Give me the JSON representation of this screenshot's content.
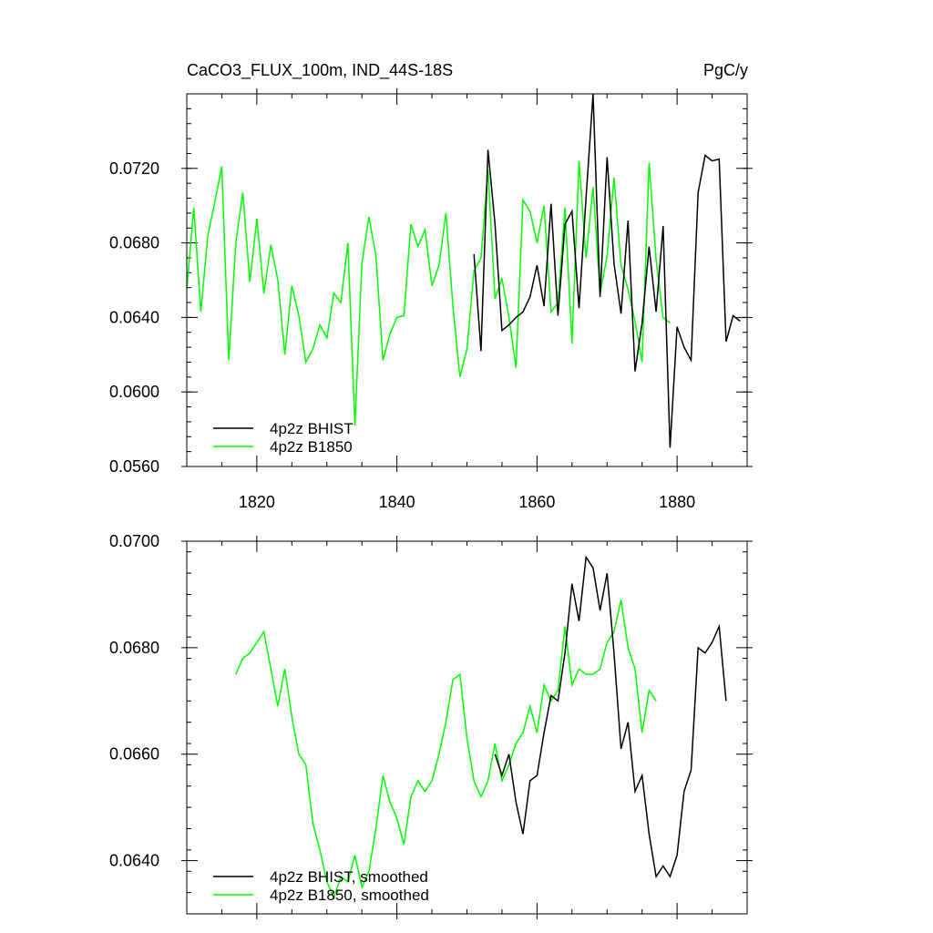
{
  "chart_data": [
    {
      "type": "line",
      "title_left": "CaCO3_FLUX_100m, IND_44S-18S",
      "title_right": "PgC/y",
      "xlabel": "",
      "ylabel": "",
      "xlim": [
        1810,
        1890
      ],
      "ylim": [
        0.056,
        0.076
      ],
      "xticks": [
        1820,
        1840,
        1860,
        1880
      ],
      "xtick_labels": [
        "1820",
        "1840",
        "1860",
        "1880"
      ],
      "yticks": [
        0.056,
        0.06,
        0.064,
        0.068,
        0.072
      ],
      "ytick_labels": [
        "0.0560",
        "0.0600",
        "0.0640",
        "0.0680",
        "0.0720"
      ],
      "legend_position": "bottom-left",
      "series": [
        {
          "name": "4p2z BHIST",
          "color": "#000000",
          "x": [
            1851,
            1852,
            1853,
            1854,
            1855,
            1856,
            1857,
            1858,
            1859,
            1860,
            1861,
            1862,
            1863,
            1864,
            1865,
            1866,
            1867,
            1868,
            1869,
            1870,
            1871,
            1872,
            1873,
            1874,
            1875,
            1876,
            1877,
            1878,
            1879,
            1880,
            1881,
            1882,
            1883,
            1884,
            1885,
            1886,
            1887,
            1888,
            1889
          ],
          "values": [
            0.0674,
            0.0622,
            0.073,
            0.069,
            0.0633,
            0.0636,
            0.064,
            0.0643,
            0.0651,
            0.0668,
            0.0646,
            0.0701,
            0.0641,
            0.069,
            0.0697,
            0.0645,
            0.0704,
            0.076,
            0.0651,
            0.0726,
            0.0669,
            0.0642,
            0.0692,
            0.0611,
            0.0637,
            0.0678,
            0.0643,
            0.0689,
            0.057,
            0.0635,
            0.0624,
            0.0617,
            0.0707,
            0.0727,
            0.0724,
            0.0725,
            0.0627,
            0.0641,
            0.0638
          ]
        },
        {
          "name": "4p2z B1850",
          "color": "#00ff00",
          "x": [
            1810,
            1811,
            1812,
            1813,
            1814,
            1815,
            1816,
            1817,
            1818,
            1819,
            1820,
            1821,
            1822,
            1823,
            1824,
            1825,
            1826,
            1827,
            1828,
            1829,
            1830,
            1831,
            1832,
            1833,
            1834,
            1835,
            1836,
            1837,
            1838,
            1839,
            1840,
            1841,
            1842,
            1843,
            1844,
            1845,
            1846,
            1847,
            1848,
            1849,
            1850,
            1851,
            1852,
            1853,
            1854,
            1855,
            1856,
            1857,
            1858,
            1859,
            1860,
            1861,
            1862,
            1863,
            1864,
            1865,
            1866,
            1867,
            1868,
            1869,
            1870,
            1871,
            1872,
            1873,
            1874,
            1875,
            1876,
            1877,
            1878,
            1879
          ],
          "values": [
            0.0655,
            0.0699,
            0.0643,
            0.0684,
            0.0702,
            0.0721,
            0.0617,
            0.068,
            0.0707,
            0.0659,
            0.0693,
            0.0653,
            0.0679,
            0.066,
            0.062,
            0.0657,
            0.0641,
            0.0616,
            0.0623,
            0.0636,
            0.0629,
            0.0653,
            0.0648,
            0.068,
            0.0582,
            0.0669,
            0.0694,
            0.0673,
            0.0617,
            0.0631,
            0.064,
            0.0641,
            0.069,
            0.0678,
            0.0687,
            0.0657,
            0.0668,
            0.0696,
            0.0646,
            0.0608,
            0.0623,
            0.0665,
            0.0672,
            0.0719,
            0.065,
            0.0661,
            0.064,
            0.0613,
            0.0703,
            0.0697,
            0.068,
            0.07,
            0.0643,
            0.0648,
            0.0699,
            0.0626,
            0.0724,
            0.0672,
            0.071,
            0.0653,
            0.0673,
            0.0715,
            0.0668,
            0.0655,
            0.0638,
            0.0616,
            0.0723,
            0.0671,
            0.064,
            0.0637
          ]
        }
      ]
    },
    {
      "type": "line",
      "title": "",
      "xlabel": "",
      "ylabel": "",
      "xlim": [
        1810,
        1890
      ],
      "ylim": [
        0.063,
        0.07
      ],
      "xticks": [
        1820,
        1840,
        1860,
        1880
      ],
      "yticks": [
        0.064,
        0.066,
        0.068,
        0.07
      ],
      "ytick_labels": [
        "0.0640",
        "0.0660",
        "0.0680",
        "0.0700"
      ],
      "legend_position": "bottom-left",
      "series": [
        {
          "name": "4p2z BHIST, smoothed",
          "color": "#000000",
          "x": [
            1854,
            1855,
            1856,
            1857,
            1858,
            1859,
            1860,
            1861,
            1862,
            1863,
            1864,
            1865,
            1866,
            1867,
            1868,
            1869,
            1870,
            1871,
            1872,
            1873,
            1874,
            1875,
            1876,
            1877,
            1878,
            1879,
            1880,
            1881,
            1882,
            1883,
            1884,
            1885,
            1886,
            1887
          ],
          "values": [
            0.066,
            0.0656,
            0.066,
            0.0651,
            0.0645,
            0.0655,
            0.0656,
            0.0664,
            0.0671,
            0.067,
            0.0679,
            0.0692,
            0.0685,
            0.0697,
            0.0695,
            0.0687,
            0.0694,
            0.0679,
            0.0661,
            0.0666,
            0.0653,
            0.0656,
            0.0645,
            0.0637,
            0.0639,
            0.0637,
            0.0641,
            0.0653,
            0.0657,
            0.068,
            0.0679,
            0.0681,
            0.0684,
            0.067
          ]
        },
        {
          "name": "4p2z B1850, smoothed",
          "color": "#00ff00",
          "x": [
            1817,
            1818,
            1819,
            1820,
            1821,
            1822,
            1823,
            1824,
            1825,
            1826,
            1827,
            1828,
            1829,
            1830,
            1831,
            1832,
            1833,
            1834,
            1835,
            1836,
            1837,
            1838,
            1839,
            1840,
            1841,
            1842,
            1843,
            1844,
            1845,
            1846,
            1847,
            1848,
            1849,
            1850,
            1851,
            1852,
            1853,
            1854,
            1855,
            1856,
            1857,
            1858,
            1859,
            1860,
            1861,
            1862,
            1863,
            1864,
            1865,
            1866,
            1867,
            1868,
            1869,
            1870,
            1871,
            1872,
            1873,
            1874,
            1875,
            1876,
            1877
          ],
          "values": [
            0.0675,
            0.0678,
            0.0679,
            0.0681,
            0.0683,
            0.0676,
            0.0669,
            0.0676,
            0.0667,
            0.066,
            0.0658,
            0.0647,
            0.0642,
            0.0636,
            0.0633,
            0.0637,
            0.0636,
            0.0641,
            0.0635,
            0.0638,
            0.0646,
            0.0656,
            0.0651,
            0.0648,
            0.0643,
            0.0652,
            0.0655,
            0.0653,
            0.0655,
            0.066,
            0.0666,
            0.0674,
            0.0675,
            0.0663,
            0.0655,
            0.0652,
            0.0655,
            0.0662,
            0.0655,
            0.0658,
            0.0662,
            0.0664,
            0.0669,
            0.0664,
            0.0673,
            0.067,
            0.0672,
            0.0684,
            0.0673,
            0.0676,
            0.0675,
            0.0675,
            0.0676,
            0.0681,
            0.0683,
            0.0689,
            0.068,
            0.0676,
            0.0664,
            0.0672,
            0.067
          ]
        }
      ]
    }
  ]
}
